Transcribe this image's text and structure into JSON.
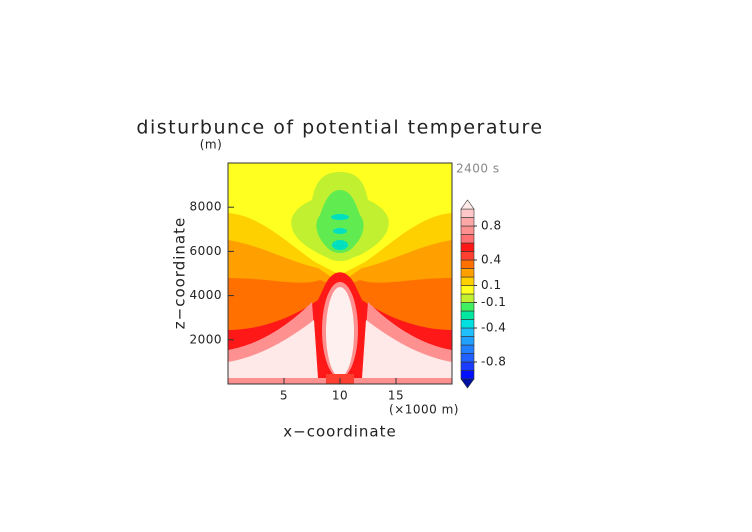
{
  "chart_data": {
    "type": "contour",
    "title": "disturbunce of potential temperature",
    "y_unit": "(m)",
    "time_label": "2400 s",
    "x_label": "x−coordinate",
    "x_unit": "(×1000 m)",
    "y_label": "z−coordinate",
    "xlim": [
      0,
      20
    ],
    "xticks": [
      5,
      10,
      15
    ],
    "ylim": [
      0,
      10000
    ],
    "yticks": [
      2000,
      4000,
      6000,
      8000
    ],
    "colorbar": {
      "levels": [
        -1,
        -0.9,
        -0.8,
        -0.7,
        -0.6,
        -0.5,
        -0.4,
        -0.3,
        -0.2,
        -0.1,
        0,
        0.1,
        0.2,
        0.3,
        0.4,
        0.5,
        0.6,
        0.7,
        0.8,
        0.9,
        1
      ],
      "colors": [
        "#0010ff",
        "#1a3cff",
        "#2060ff",
        "#2080ff",
        "#20a0ff",
        "#20c0ff",
        "#00e0e0",
        "#00e8a0",
        "#40f060",
        "#c0f030",
        "#ffff20",
        "#ffd000",
        "#ffa000",
        "#ff7000",
        "#ff4030",
        "#ff1818",
        "#ff7070",
        "#ff9090",
        "#ffa8a8",
        "#ffc8c8"
      ],
      "below_color": "#0010a0",
      "above_color": "#ffe8e8",
      "ticks": [
        0.8,
        0.4,
        0.1,
        -0.1,
        -0.4,
        -0.8
      ]
    }
  }
}
